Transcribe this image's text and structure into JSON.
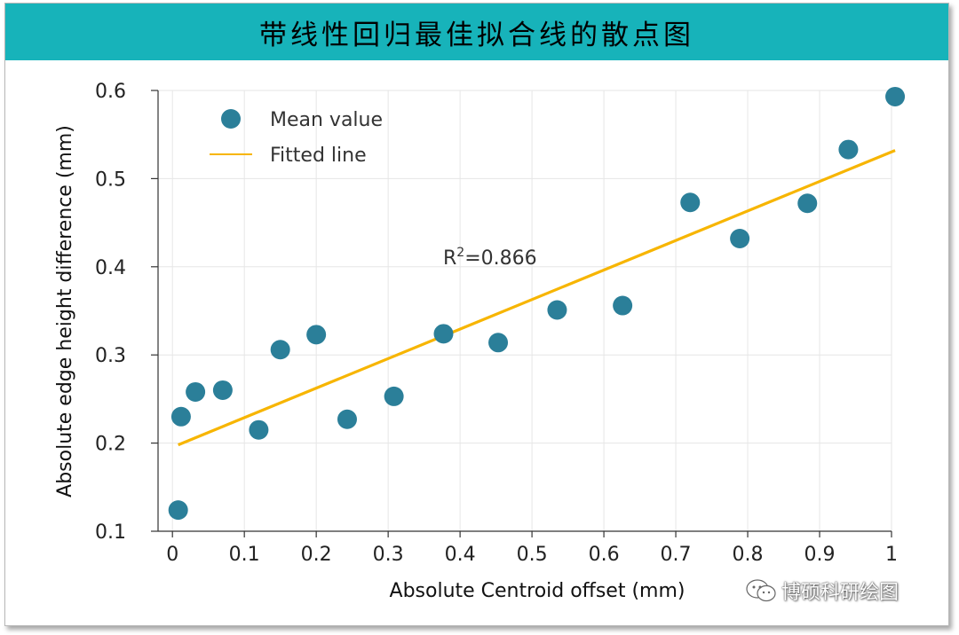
{
  "banner": {
    "title": "带线性回归最佳拟合线的散点图"
  },
  "colors": {
    "banner": "#17b3ba",
    "points": "#2b7f99",
    "fit_line": "#f7b500",
    "grid": "#e6e6e6",
    "axis": "#333333"
  },
  "watermark": {
    "text": "博硕科研绘图",
    "icon": "wechat-icon"
  },
  "chart_data": {
    "type": "scatter",
    "xlabel": "Absolute Centroid offset (mm)",
    "ylabel": "Absolute edge height difference (mm)",
    "xlim": [
      -0.02,
      1.0
    ],
    "ylim": [
      0.1,
      0.6
    ],
    "x_ticks": [
      "0",
      "0.1",
      "0.2",
      "0.3",
      "0.4",
      "0.5",
      "0.6",
      "0.7",
      "0.8",
      "0.9",
      "1"
    ],
    "y_ticks": [
      "0.1",
      "0.2",
      "0.3",
      "0.4",
      "0.5",
      "0.6"
    ],
    "grid": true,
    "legend": {
      "placement": "top-left",
      "entries": [
        "Mean value",
        "Fitted line"
      ]
    },
    "annotation": {
      "base": "R",
      "sup": "2",
      "rest": "=0.866",
      "x": 0.45,
      "y": 0.41
    },
    "series": [
      {
        "name": "Mean value",
        "type": "scatter",
        "points": [
          [
            0.008,
            0.124
          ],
          [
            0.012,
            0.23
          ],
          [
            0.032,
            0.258
          ],
          [
            0.07,
            0.26
          ],
          [
            0.12,
            0.215
          ],
          [
            0.15,
            0.306
          ],
          [
            0.2,
            0.323
          ],
          [
            0.243,
            0.227
          ],
          [
            0.308,
            0.253
          ],
          [
            0.377,
            0.324
          ],
          [
            0.453,
            0.314
          ],
          [
            0.535,
            0.351
          ],
          [
            0.626,
            0.356
          ],
          [
            0.72,
            0.473
          ],
          [
            0.789,
            0.432
          ],
          [
            0.883,
            0.472
          ],
          [
            0.94,
            0.533
          ],
          [
            1.005,
            0.593
          ]
        ]
      },
      {
        "name": "Fitted line",
        "type": "line",
        "points": [
          [
            0.008,
            0.198
          ],
          [
            1.005,
            0.532
          ]
        ]
      }
    ]
  }
}
